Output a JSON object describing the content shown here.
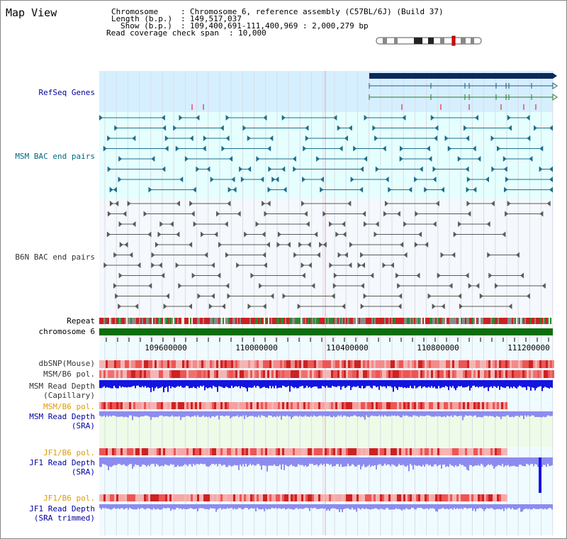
{
  "header": {
    "title": "Map View",
    "chromosome_label": "Chromosome",
    "chromosome_value": "Chromosome 6, reference assembly (C57BL/6J) (Build 37)",
    "length_label": "Length (b.p.)",
    "length_value": "149,517,037",
    "show_label": "Show (b.p.)",
    "show_value": "109,400,691-111,400,969 : 2,000,279 bp",
    "coverage_label": "Read coverage check span",
    "coverage_value": "10,000"
  },
  "tracks": {
    "refseq": "RefSeq Genes",
    "msm_bac": "MSM BAC end pairs",
    "b6n_bac": "B6N BAC end pairs",
    "repeat": "Repeat",
    "chromosome": "chromosome 6",
    "dbsnp": "dbSNP(Mouse)",
    "msm_b6_pol": "MSM/B6 pol.",
    "msm_depth_cap_1": "MSM Read Depth",
    "msm_depth_cap_2": "(Capillary)",
    "msm_b6_pol_2": "MSM/B6 pol.",
    "msm_depth_sra_1": "MSM Read Depth",
    "msm_depth_sra_2": "(SRA)",
    "jf1_b6_pol": "JF1/B6 pol.",
    "jf1_depth_sra_1": "JF1 Read Depth",
    "jf1_depth_sra_2": "(SRA)",
    "jf1_b6_pol_2": "JF1/B6 pol.",
    "jf1_depth_trim_1": "JF1 Read Depth",
    "jf1_depth_trim_2": "(SRA trimmed)"
  },
  "axis": {
    "ticks": [
      "109600000",
      "110000000",
      "110400000",
      "110800000",
      "111200000"
    ]
  },
  "colors": {
    "refseq_bg": "#d5efff",
    "msm_bg": "#e5ffff",
    "b6n_bg": "#f5f8fc",
    "track_bg": "#f0fbff",
    "gene_bar": "#0a2a5a",
    "msm_pair": "#1f6e8a",
    "b6n_pair": "#5a5a5a",
    "repeat_red": "#cc2020",
    "repeat_green": "#2a8a2a",
    "chrom": "#0a6e0a",
    "snp": "#f08080",
    "depth_dark": "#1414e0",
    "depth_light": "#8c8cf0",
    "label_blue": "#0000a0",
    "label_teal": "#006a80",
    "label_orange": "#e09a00"
  }
}
